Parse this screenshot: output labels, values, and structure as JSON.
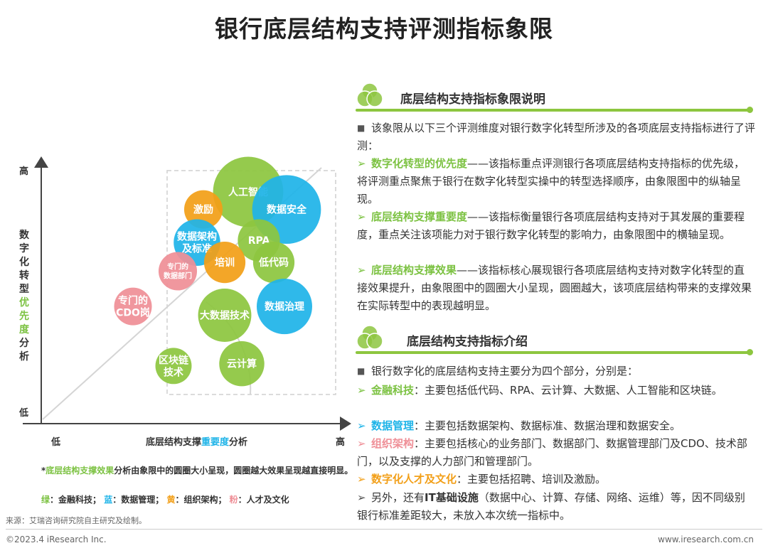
{
  "title": "银行底层结构支持评测指标象限",
  "chart": {
    "y_high": "高",
    "y_low": "低",
    "x_low": "低",
    "x_high": "高",
    "y_axis_lines": [
      "数",
      "字",
      "化",
      "转",
      "型",
      "优",
      "先",
      "度",
      "分",
      "析"
    ],
    "x_axis": {
      "pre": "底层结构支撑",
      "em": "重要度",
      "post": "分析"
    },
    "colors": {
      "green": "#8dc63f",
      "blue": "#1fb4e8",
      "orange": "#f29f18",
      "pink": "#ef8f97"
    },
    "bubbles": [
      {
        "id": "ai",
        "label": [
          "人工智能"
        ],
        "group": "green",
        "x": 7.3,
        "y": 9.1,
        "r": 9.5
      },
      {
        "id": "datasec",
        "label": [
          "数据安全"
        ],
        "group": "blue",
        "x": 9.1,
        "y": 8.3,
        "r": 9.3
      },
      {
        "id": "incentive",
        "label": [
          "激励"
        ],
        "group": "orange",
        "x": 5.2,
        "y": 8.3,
        "r": 5.2
      },
      {
        "id": "rpa",
        "label": [
          "RPA"
        ],
        "group": "green",
        "x": 7.8,
        "y": 6.9,
        "r": 5.7
      },
      {
        "id": "arch",
        "label": [
          "数据架构",
          "及标准"
        ],
        "group": "blue",
        "x": 4.9,
        "y": 6.8,
        "r": 6.3
      },
      {
        "id": "lowcode",
        "label": [
          "低代码"
        ],
        "group": "green",
        "x": 8.5,
        "y": 5.9,
        "r": 5.6
      },
      {
        "id": "training",
        "label": [
          "培训"
        ],
        "group": "orange",
        "x": 6.2,
        "y": 5.9,
        "r": 5.6
      },
      {
        "id": "datadept",
        "label": [
          "专门的",
          "数据部门"
        ],
        "group": "pink",
        "x": 4.0,
        "y": 5.5,
        "r": 5.2
      },
      {
        "id": "cdo",
        "label": [
          "专门的",
          "CDO岗"
        ],
        "group": "pink",
        "x": 1.9,
        "y": 3.9,
        "r": 5.1
      },
      {
        "id": "bigdata",
        "label": [
          "大数据技术"
        ],
        "group": "green",
        "x": 6.2,
        "y": 3.5,
        "r": 7.2
      },
      {
        "id": "datagov",
        "label": [
          "数据治理"
        ],
        "group": "blue",
        "x": 9.0,
        "y": 3.9,
        "r": 7.5
      },
      {
        "id": "blockchain",
        "label": [
          "区块链",
          "技术"
        ],
        "group": "green",
        "x": 3.8,
        "y": 1.2,
        "r": 4.9
      },
      {
        "id": "cloud",
        "label": [
          "云计算"
        ],
        "group": "green",
        "x": 7.0,
        "y": 1.3,
        "r": 6.1
      }
    ]
  },
  "footnote": {
    "star": "*",
    "em": "底层结构支撑效果",
    "rest": "分析由象限中的圆圈大小呈现，圆圈越大效果呈现越直接明显。"
  },
  "legend": [
    {
      "key": "绿",
      "cls": "g",
      "text": "：金融科技；"
    },
    {
      "key": "蓝",
      "cls": "b",
      "text": "：数据管理；"
    },
    {
      "key": "黄",
      "cls": "y",
      "text": "：组织架构；"
    },
    {
      "key": "粉",
      "cls": "p",
      "text": "：人才及文化"
    }
  ],
  "section1": {
    "header": "底层结构支持指标象限说明",
    "intro": "该象限从以下三个评测维度对银行数字化转型所涉及的各项底层支持指标进行了评测：",
    "items": [
      {
        "em": "数字化转型的优先度",
        "text": "——该指标重点评测银行各项底层结构支持指标的优先级，将评测重点聚焦于银行在数字化转型实操中的转型选择顺序，由象限图中的纵轴呈现。"
      },
      {
        "em": "底层结构支撑重要度",
        "text": "——该指标衡量银行各项底层结构支持对于其发展的重要程度，重点关注该项能力对于银行数字化转型的影响力，由象限图中的横轴呈现。"
      },
      {
        "em": "底层结构支撑效果",
        "text": "——该指标核心展现银行各项底层结构支持对数字化转型的直接效果提升，由象限图中的圆圈大小呈现，圆圈越大，该项底层结构带来的支撑效果在实际转型中的表现越明显。"
      }
    ]
  },
  "section2": {
    "header": "底层结构支持指标介绍",
    "intro": "银行数字化的底层结构支持主要分为四个部分，分别是：",
    "items": [
      {
        "em": "金融科技",
        "text": "：主要包括低代码、RPA、云计算、大数据、人工智能和区块链。"
      },
      {
        "em": "数据管理",
        "text": "：主要包括数据架构、数据标准、数据治理和数据安全。"
      },
      {
        "em": "组织架构",
        "text": "：主要包括核心的业务部门、数据部门、数据管理部门及CDO、技术部门，以及支撑的人力部门和管理部门。"
      },
      {
        "em": "数字化人才及文化",
        "text": "：主要包括招聘、培训及激励。"
      }
    ],
    "extra": {
      "pre": "另外，还有",
      "em": "IT基础设施",
      "post": "（数据中心、计算、存储、网络、运维）等，因不同级别银行标准差距较大，未放入本次统一指标中。"
    }
  },
  "source": "来源：艾瑞咨询研究院自主研究及绘制。",
  "copyright": "©2023.4 iResearch Inc.",
  "website": "www.iresearch.com.cn"
}
